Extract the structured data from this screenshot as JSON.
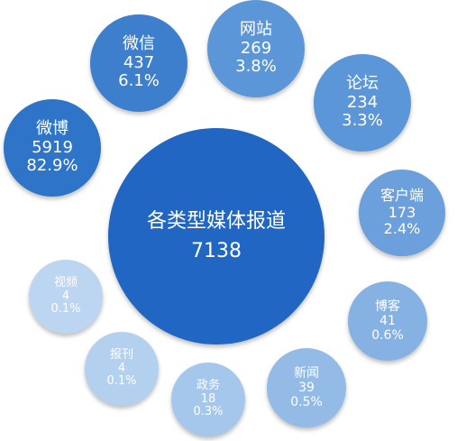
{
  "center": {
    "label": "各类型媒体报道",
    "value": "7138",
    "color": "#2166c2"
  },
  "bubbles": [
    {
      "key": "weibo",
      "label": "微博",
      "count": "5919",
      "pct": "82.9%",
      "color": "#2e74c8"
    },
    {
      "key": "weixin",
      "label": "微信",
      "count": "437",
      "pct": "6.1%",
      "color": "#3d7fcd"
    },
    {
      "key": "wangzhan",
      "label": "网站",
      "count": "269",
      "pct": "3.8%",
      "color": "#5b96d8"
    },
    {
      "key": "luntan",
      "label": "论坛",
      "count": "234",
      "pct": "3.3%",
      "color": "#5b96d8"
    },
    {
      "key": "kehuduan",
      "label": "客户端",
      "count": "173",
      "pct": "2.4%",
      "color": "#6ba0dc"
    },
    {
      "key": "boke",
      "label": "博客",
      "count": "41",
      "pct": "0.6%",
      "color": "#86b2e3"
    },
    {
      "key": "xinwen",
      "label": "新闻",
      "count": "39",
      "pct": "0.5%",
      "color": "#93bbe6"
    },
    {
      "key": "zhengwu",
      "label": "政务",
      "count": "18",
      "pct": "0.3%",
      "color": "#a5c7ec"
    },
    {
      "key": "baokan",
      "label": "报刊",
      "count": "4",
      "pct": "0.1%",
      "color": "#b4d0ef"
    },
    {
      "key": "shipin",
      "label": "视频",
      "count": "4",
      "pct": "0.1%",
      "color": "#bcd5f1"
    }
  ]
}
